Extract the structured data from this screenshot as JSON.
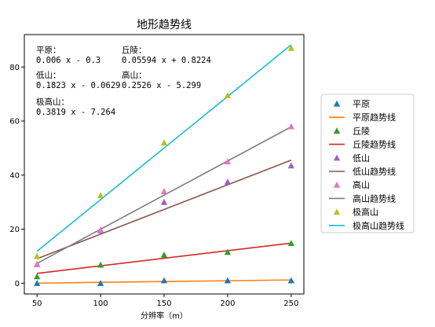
{
  "chart_data": {
    "type": "scatter",
    "title": "地形趋势线",
    "xlabel": "分辨率（m）",
    "ylabel": "",
    "x": [
      50,
      100,
      150,
      200,
      250
    ],
    "xticks": [
      50,
      100,
      150,
      200,
      250
    ],
    "yticks": [
      0,
      20,
      40,
      60,
      80
    ],
    "xlim": [
      40,
      260
    ],
    "ylim": [
      -4,
      92
    ],
    "grid": false,
    "legend_position": "right",
    "series": [
      {
        "name": "平原",
        "trend_name": "平原趋势线",
        "values": [
          0,
          0,
          1,
          1,
          1
        ],
        "slope": 0.006,
        "intercept": -0.3,
        "marker_color": "#1f77b4",
        "line_color": "#ff7f0e"
      },
      {
        "name": "丘陵",
        "trend_name": "丘陵趋势线",
        "values": [
          2.5,
          6.8,
          10.5,
          11.5,
          14.8
        ],
        "slope": 0.05594,
        "intercept": 0.8224,
        "marker_color": "#2ca02c",
        "line_color": "#d62728"
      },
      {
        "name": "低山",
        "trend_name": "低山趋势线",
        "values": [
          7,
          19.5,
          30,
          37.5,
          43.5
        ],
        "slope": 0.1823,
        "intercept": -0.0629,
        "marker_color": "#9467bd",
        "line_color": "#8c564b"
      },
      {
        "name": "高山",
        "trend_name": "高山趋势线",
        "values": [
          7,
          19.8,
          34,
          45,
          58
        ],
        "slope": 0.2526,
        "intercept": -5.299,
        "marker_color": "#e377c2",
        "line_color": "#7f7f7f"
      },
      {
        "name": "极高山",
        "trend_name": "极高山趋势线",
        "values": [
          10,
          32.5,
          52,
          69.5,
          87
        ],
        "slope": 0.3819,
        "intercept": -7.264,
        "marker_color": "#bcbd22",
        "line_color": "#17becf"
      }
    ],
    "annotations": [
      {
        "label": "平原：",
        "equation": "0.006 x - 0.3"
      },
      {
        "label": "丘陵：",
        "equation": "0.05594 x + 0.8224"
      },
      {
        "label": "低山：",
        "equation": "0.1823 x - 0.0629"
      },
      {
        "label": "高山：",
        "equation": "0.2526 x - 5.299"
      },
      {
        "label": "极高山：",
        "equation": "0.3819 x - 7.264"
      }
    ]
  }
}
